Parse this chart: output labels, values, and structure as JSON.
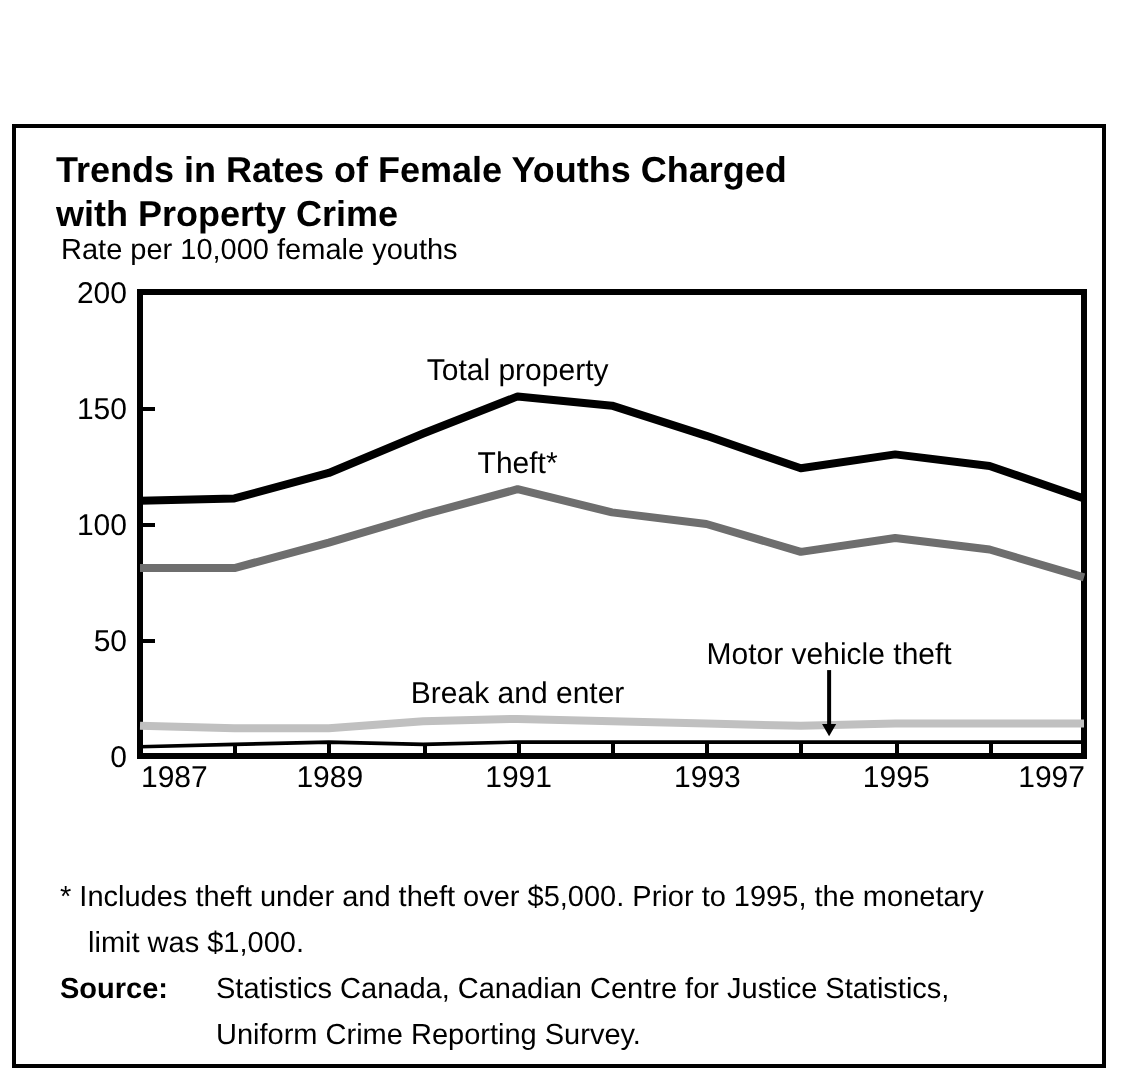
{
  "chart_data": {
    "type": "line",
    "title": "Trends in Rates of Female Youths Charged with Property Crime",
    "ylabel": "Rate per 10,000 female youths",
    "x": [
      1987,
      1988,
      1989,
      1990,
      1991,
      1992,
      1993,
      1994,
      1995,
      1996,
      1997
    ],
    "series": [
      {
        "name": "Total property",
        "color": "#000000",
        "values": [
          110,
          111,
          122,
          139,
          155,
          151,
          138,
          124,
          130,
          125,
          111
        ]
      },
      {
        "name": "Theft*",
        "color": "#6e6e6e",
        "values": [
          81,
          81,
          92,
          104,
          115,
          105,
          100,
          88,
          94,
          89,
          77
        ]
      },
      {
        "name": "Break and enter",
        "color": "#c0c0c0",
        "values": [
          13,
          12,
          12,
          15,
          16,
          15,
          14,
          13,
          14,
          14,
          14
        ]
      },
      {
        "color": "#000000",
        "values": [
          4,
          5,
          6,
          5,
          6,
          6,
          6,
          6,
          6,
          6,
          6
        ]
      }
    ],
    "annotations": [
      {
        "text": "Motor vehicle theft",
        "x": 1994.3,
        "y": 6
      },
      "* Includes theft under and theft over $5,000.  Prior to 1995, the monetary limit was $1,000.",
      "Source: Statistics Canada, Canadian Centre for Justice Statistics, Uniform Crime Reporting Survey."
    ],
    "xlim": [
      1987,
      1997
    ],
    "xticks": [
      1987,
      {
        "value": 1988,
        "label": null
      },
      1989,
      {
        "value": 1990,
        "label": null
      },
      1991,
      {
        "value": 1992,
        "label": null
      },
      1993,
      {
        "value": 1994,
        "label": null
      },
      1995,
      {
        "value": 1996,
        "label": null
      },
      1997
    ],
    "ylim": [
      0,
      200
    ],
    "yticks": [
      0,
      50,
      100,
      150,
      200
    ],
    "grid": false,
    "legend": false,
    "marker": "none",
    "line_style": "solid"
  }
}
